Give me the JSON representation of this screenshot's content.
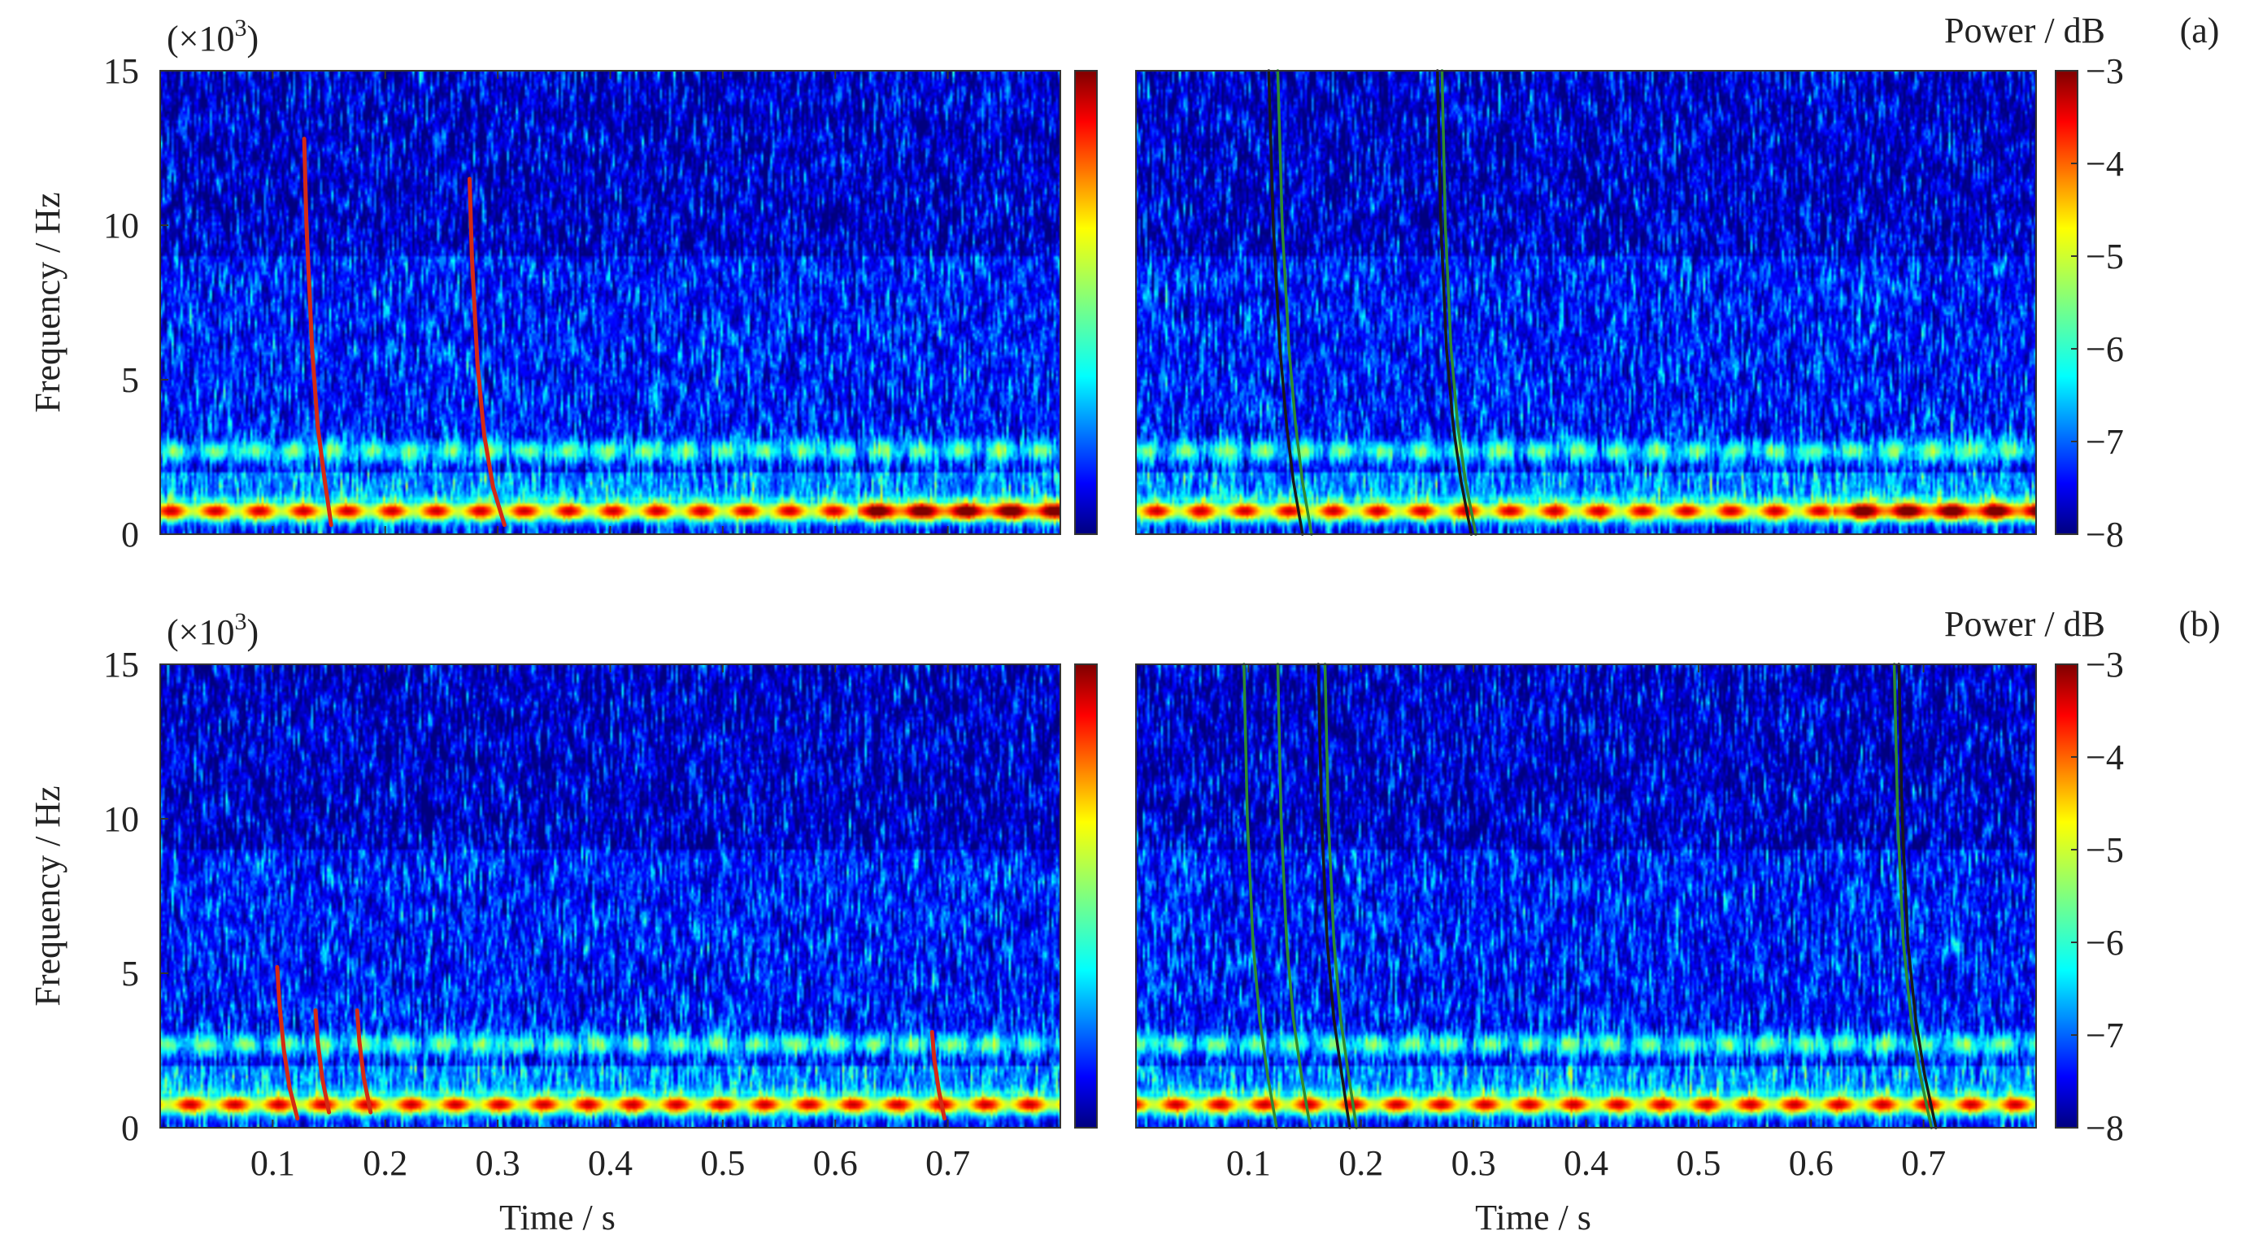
{
  "figure": {
    "panel_labels": [
      "(a)",
      "(b)"
    ],
    "colorbar_title": "Power / dB",
    "exponent_label": "(×10",
    "exponent_power": "3",
    "exponent_close": ")"
  },
  "chart_data": [
    {
      "type": "heatmap",
      "id": "a-left",
      "row": "(a)",
      "xlabel": "",
      "ylabel": "Frequency / Hz",
      "y_multiplier": "(×10^3)",
      "xlim": [
        0,
        0.8
      ],
      "ylim": [
        0,
        15
      ],
      "x_ticks": [
        0.1,
        0.2,
        0.3,
        0.4,
        0.5,
        0.6,
        0.7
      ],
      "y_ticks": [
        0,
        5,
        10,
        15
      ],
      "colorbar": {
        "clim": [
          -8,
          -3
        ],
        "ticks": [],
        "colormap": "jet"
      },
      "background": {
        "noise_level_db": -7.3,
        "band_2_7kHz_db": -5.4,
        "band_0_7kHz_db": -4.2,
        "strong_band_interval_s": [
          0.62,
          0.8
        ]
      },
      "tracks": [
        {
          "color": "#d42a14",
          "points": [
            [
              0.128,
              12.8
            ],
            [
              0.13,
              10
            ],
            [
              0.135,
              6
            ],
            [
              0.14,
              3.5
            ],
            [
              0.146,
              1.8
            ],
            [
              0.152,
              0.3
            ]
          ]
        },
        {
          "color": "#d42a14",
          "points": [
            [
              0.275,
              11.5
            ],
            [
              0.277,
              9
            ],
            [
              0.282,
              5.5
            ],
            [
              0.288,
              3.2
            ],
            [
              0.296,
              1.5
            ],
            [
              0.306,
              0.3
            ]
          ]
        }
      ]
    },
    {
      "type": "heatmap",
      "id": "a-right",
      "row": "(a)",
      "xlabel": "",
      "ylabel": "",
      "xlim": [
        0,
        0.8
      ],
      "ylim": [
        0,
        15
      ],
      "x_ticks": [],
      "y_ticks": [],
      "colorbar": {
        "title": "Power / dB",
        "clim": [
          -8,
          -3
        ],
        "ticks": [
          -3,
          -4,
          -5,
          -6,
          -7,
          -8
        ],
        "colormap": "jet"
      },
      "background": {
        "noise_level_db": -7.3,
        "band_2_7kHz_db": -5.4,
        "band_0_7kHz_db": -4.2,
        "strong_band_interval_s": [
          0.62,
          0.8
        ]
      },
      "tracks": [
        {
          "color": "#1a1a1a",
          "points": [
            [
              0.118,
              15
            ],
            [
              0.122,
              10
            ],
            [
              0.128,
              6
            ],
            [
              0.134,
              3.5
            ],
            [
              0.14,
              1.7
            ],
            [
              0.148,
              0
            ]
          ]
        },
        {
          "color": "#2f8a2f",
          "points": [
            [
              0.126,
              15
            ],
            [
              0.13,
              10
            ],
            [
              0.136,
              6
            ],
            [
              0.142,
              3.5
            ],
            [
              0.148,
              1.7
            ],
            [
              0.156,
              0
            ]
          ]
        },
        {
          "color": "#1a1a1a",
          "points": [
            [
              0.268,
              15
            ],
            [
              0.271,
              10
            ],
            [
              0.276,
              6
            ],
            [
              0.282,
              3.5
            ],
            [
              0.289,
              1.7
            ],
            [
              0.298,
              0
            ]
          ]
        },
        {
          "color": "#2f8a2f",
          "points": [
            [
              0.272,
              15
            ],
            [
              0.275,
              10
            ],
            [
              0.28,
              6
            ],
            [
              0.286,
              3.5
            ],
            [
              0.293,
              1.7
            ],
            [
              0.302,
              0
            ]
          ]
        }
      ]
    },
    {
      "type": "heatmap",
      "id": "b-left",
      "row": "(b)",
      "xlabel": "Time / s",
      "ylabel": "Frequency / Hz",
      "y_multiplier": "(×10^3)",
      "xlim": [
        0,
        0.8
      ],
      "ylim": [
        0,
        15
      ],
      "x_ticks": [
        0.1,
        0.2,
        0.3,
        0.4,
        0.5,
        0.6,
        0.7
      ],
      "y_ticks": [
        0,
        5,
        10,
        15
      ],
      "colorbar": {
        "clim": [
          -8,
          -3
        ],
        "ticks": [],
        "colormap": "jet"
      },
      "background": {
        "noise_level_db": -7.3,
        "band_2_7kHz_db": -5.4,
        "band_0_7kHz_db": -4.2,
        "strong_band_interval_s": []
      },
      "tracks": [
        {
          "color": "#d42a14",
          "points": [
            [
              0.104,
              5.2
            ],
            [
              0.106,
              4
            ],
            [
              0.11,
              2.5
            ],
            [
              0.115,
              1.3
            ],
            [
              0.122,
              0.3
            ]
          ]
        },
        {
          "color": "#d42a14",
          "points": [
            [
              0.138,
              3.8
            ],
            [
              0.14,
              2.8
            ],
            [
              0.144,
              1.6
            ],
            [
              0.15,
              0.5
            ]
          ]
        },
        {
          "color": "#d42a14",
          "points": [
            [
              0.175,
              3.8
            ],
            [
              0.177,
              2.8
            ],
            [
              0.181,
              1.6
            ],
            [
              0.187,
              0.5
            ]
          ]
        },
        {
          "color": "#d42a14",
          "points": [
            [
              0.686,
              3.1
            ],
            [
              0.688,
              2.2
            ],
            [
              0.692,
              1.2
            ],
            [
              0.697,
              0.3
            ]
          ]
        }
      ]
    },
    {
      "type": "heatmap",
      "id": "b-right",
      "row": "(b)",
      "xlabel": "Time / s",
      "ylabel": "",
      "xlim": [
        0,
        0.8
      ],
      "ylim": [
        0,
        15
      ],
      "x_ticks": [
        0.1,
        0.2,
        0.3,
        0.4,
        0.5,
        0.6,
        0.7
      ],
      "y_ticks": [],
      "colorbar": {
        "title": "Power / dB",
        "clim": [
          -8,
          -3
        ],
        "ticks": [
          -3,
          -4,
          -5,
          -6,
          -7,
          -8
        ],
        "colormap": "jet"
      },
      "background": {
        "noise_level_db": -7.3,
        "band_2_7kHz_db": -5.4,
        "band_0_7kHz_db": -4.2,
        "strong_band_interval_s": []
      },
      "tracks": [
        {
          "color": "#2f8a2f",
          "points": [
            [
              0.096,
              15
            ],
            [
              0.099,
              10
            ],
            [
              0.104,
              6
            ],
            [
              0.11,
              3.5
            ],
            [
              0.117,
              1.7
            ],
            [
              0.125,
              0
            ]
          ]
        },
        {
          "color": "#2f8a2f",
          "points": [
            [
              0.126,
              15
            ],
            [
              0.129,
              10
            ],
            [
              0.134,
              6
            ],
            [
              0.14,
              3.5
            ],
            [
              0.147,
              1.7
            ],
            [
              0.155,
              0
            ]
          ]
        },
        {
          "color": "#1a1a1a",
          "points": [
            [
              0.162,
              15
            ],
            [
              0.165,
              10
            ],
            [
              0.17,
              6
            ],
            [
              0.176,
              3.5
            ],
            [
              0.183,
              1.7
            ],
            [
              0.19,
              0
            ]
          ]
        },
        {
          "color": "#2f8a2f",
          "points": [
            [
              0.168,
              15
            ],
            [
              0.171,
              10
            ],
            [
              0.176,
              6
            ],
            [
              0.182,
              3.5
            ],
            [
              0.189,
              1.7
            ],
            [
              0.196,
              0
            ]
          ]
        },
        {
          "color": "#2f8a2f",
          "points": [
            [
              0.674,
              15
            ],
            [
              0.677,
              10
            ],
            [
              0.682,
              6
            ],
            [
              0.689,
              3.5
            ],
            [
              0.697,
              1.7
            ],
            [
              0.707,
              0
            ]
          ]
        },
        {
          "color": "#1a1a1a",
          "points": [
            [
              0.678,
              15
            ],
            [
              0.681,
              10
            ],
            [
              0.686,
              6
            ],
            [
              0.693,
              3.5
            ],
            [
              0.701,
              1.7
            ],
            [
              0.711,
              0
            ]
          ]
        }
      ]
    }
  ]
}
